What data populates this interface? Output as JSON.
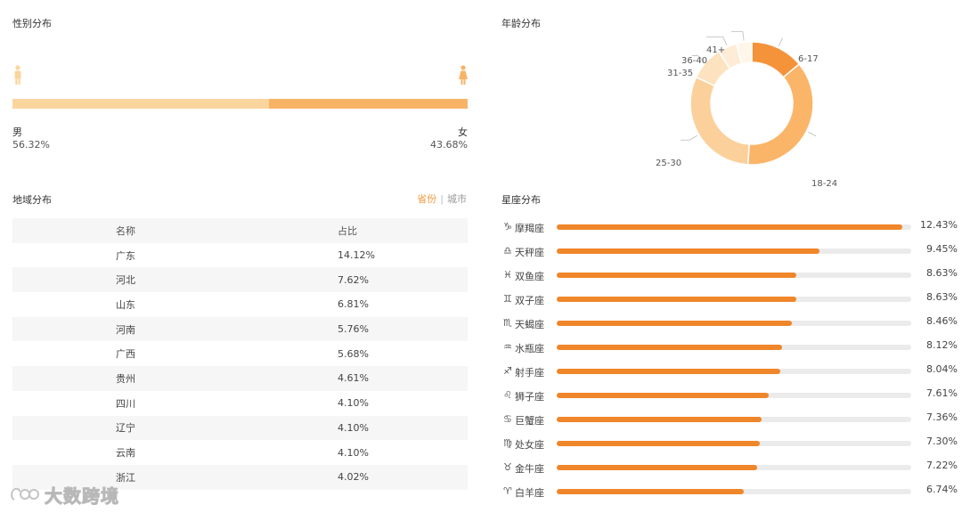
{
  "gender": {
    "title": "性别分布",
    "male_label": "男",
    "male_value": "56.32%",
    "male_fraction": 0.5632,
    "female_label": "女",
    "female_value": "43.68%",
    "female_fraction": 0.4368,
    "male_color": "#fbd59e",
    "female_color": "#f7b466",
    "male_icon": "male-person-icon",
    "female_icon": "female-person-icon"
  },
  "region": {
    "title": "地域分布",
    "toggle": {
      "province": "省份",
      "separator": "|",
      "city": "城市"
    },
    "columns": [
      "名称",
      "占比"
    ],
    "rows": [
      {
        "name": "广东",
        "value": "14.12%"
      },
      {
        "name": "河北",
        "value": "7.62%"
      },
      {
        "name": "山东",
        "value": "6.81%"
      },
      {
        "name": "河南",
        "value": "5.76%"
      },
      {
        "name": "广西",
        "value": "5.68%"
      },
      {
        "name": "贵州",
        "value": "4.61%"
      },
      {
        "name": "四川",
        "value": "4.10%"
      },
      {
        "name": "辽宁",
        "value": "4.10%"
      },
      {
        "name": "云南",
        "value": "4.10%"
      },
      {
        "name": "浙江",
        "value": "4.02%"
      }
    ]
  },
  "age": {
    "title": "年龄分布",
    "chart_data": {
      "type": "pie",
      "labels": [
        "6-17",
        "18-24",
        "25-30",
        "31-35",
        "36-40",
        "41+"
      ],
      "values": [
        14,
        37,
        31,
        9,
        5,
        4
      ],
      "colors": [
        "#f5933a",
        "#fbb569",
        "#fcd09b",
        "#fde2bf",
        "#feecd6",
        "#fff5e8"
      ]
    }
  },
  "zodiac": {
    "title": "星座分布",
    "max": 12.43,
    "items": [
      {
        "symbol": "♑",
        "name": "摩羯座",
        "value": 12.43,
        "label": "12.43%"
      },
      {
        "symbol": "♎",
        "name": "天秤座",
        "value": 9.45,
        "label": "9.45%"
      },
      {
        "symbol": "♓",
        "name": "双鱼座",
        "value": 8.63,
        "label": "8.63%"
      },
      {
        "symbol": "♊",
        "name": "双子座",
        "value": 8.63,
        "label": "8.63%"
      },
      {
        "symbol": "♏",
        "name": "天蝎座",
        "value": 8.46,
        "label": "8.46%"
      },
      {
        "symbol": "♒",
        "name": "水瓶座",
        "value": 8.12,
        "label": "8.12%"
      },
      {
        "symbol": "♐",
        "name": "射手座",
        "value": 8.04,
        "label": "8.04%"
      },
      {
        "symbol": "♌",
        "name": "狮子座",
        "value": 7.61,
        "label": "7.61%"
      },
      {
        "symbol": "♋",
        "name": "巨蟹座",
        "value": 7.36,
        "label": "7.36%"
      },
      {
        "symbol": "♍",
        "name": "处女座",
        "value": 7.3,
        "label": "7.30%"
      },
      {
        "symbol": "♉",
        "name": "金牛座",
        "value": 7.22,
        "label": "7.22%"
      },
      {
        "symbol": "♈",
        "name": "白羊座",
        "value": 6.74,
        "label": "6.74%"
      }
    ],
    "bar_color": "#f0862a",
    "track_color": "#ebebeb"
  },
  "watermark": {
    "text": "大数跨境",
    "icon": "brand-logo-icon"
  }
}
